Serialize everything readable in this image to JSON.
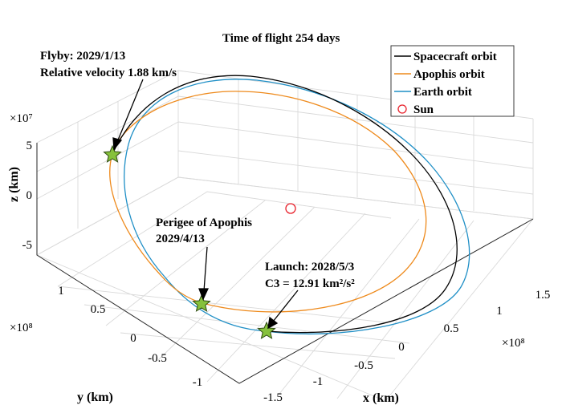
{
  "chart_data": {
    "type": "line",
    "projection": "3d",
    "title": "Time of flight 254 days",
    "xlabel": "x (km)",
    "ylabel": "y (km)",
    "zlabel": "z (km)",
    "x_ticks": [
      "-1.5",
      "-1",
      "-0.5",
      "0",
      "0.5",
      "1",
      "1.5"
    ],
    "y_ticks": [
      "-1",
      "-0.5",
      "0",
      "0.5",
      "1"
    ],
    "z_ticks": [
      "-5",
      "0",
      "5"
    ],
    "x_exponent": "×10⁸",
    "y_exponent": "×10⁸",
    "z_exponent": "×10⁷",
    "xlim": [
      -1.5,
      1.5
    ],
    "ylim": [
      -1,
      1
    ],
    "zlim": [
      -5,
      5
    ],
    "grid": true,
    "legend_position": "top-right",
    "series": [
      {
        "name": "Spacecraft orbit",
        "color": "#000000"
      },
      {
        "name": "Apophis orbit",
        "color": "#EE8A1C"
      },
      {
        "name": "Earth orbit",
        "color": "#1F8FC6"
      },
      {
        "name": "Sun",
        "color": "#E8202A",
        "marker": "circle"
      }
    ],
    "annotations": [
      {
        "lines": [
          "Flyby: 2029/1/13",
          "Relative velocity 1.88 km/s"
        ]
      },
      {
        "lines": [
          "Perigee of Apophis",
          "2029/4/13"
        ]
      },
      {
        "lines": [
          "Launch: 2028/5/3",
          "C3 = 12.91 km²/s²"
        ]
      }
    ]
  }
}
